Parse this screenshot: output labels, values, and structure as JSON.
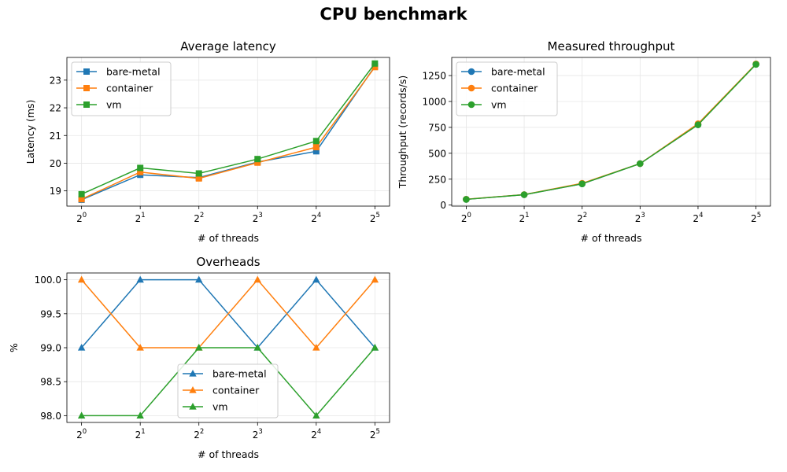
{
  "title": "CPU benchmark",
  "chart_data": [
    {
      "type": "line",
      "title": "Average latency",
      "xlabel": "# of threads",
      "ylabel": "Latency (ms)",
      "x": [
        1,
        2,
        4,
        8,
        16,
        32
      ],
      "x_tick_labels": [
        {
          "base": "2",
          "exp": "0"
        },
        {
          "base": "2",
          "exp": "1"
        },
        {
          "base": "2",
          "exp": "2"
        },
        {
          "base": "2",
          "exp": "3"
        },
        {
          "base": "2",
          "exp": "4"
        },
        {
          "base": "2",
          "exp": "5"
        }
      ],
      "x_scale": "log2",
      "ylim": [
        18.45,
        23.82
      ],
      "y_ticks": [
        19,
        20,
        21,
        22,
        23
      ],
      "marker": "square",
      "grid": true,
      "legend_position": "upper left",
      "series": [
        {
          "name": "bare-metal",
          "color": "#1f77b4",
          "values": [
            18.68,
            19.58,
            19.48,
            20.04,
            20.43,
            23.5
          ]
        },
        {
          "name": "container",
          "color": "#ff7f0e",
          "values": [
            18.7,
            19.68,
            19.45,
            20.02,
            20.58,
            23.47
          ]
        },
        {
          "name": "vm",
          "color": "#2ca02c",
          "values": [
            18.88,
            19.83,
            19.63,
            20.15,
            20.8,
            23.6
          ]
        }
      ]
    },
    {
      "type": "line",
      "title": "Measured throughput",
      "xlabel": "# of threads",
      "ylabel": "Throughput (records/s)",
      "x": [
        1,
        2,
        4,
        8,
        16,
        32
      ],
      "x_tick_labels": [
        {
          "base": "2",
          "exp": "0"
        },
        {
          "base": "2",
          "exp": "1"
        },
        {
          "base": "2",
          "exp": "2"
        },
        {
          "base": "2",
          "exp": "3"
        },
        {
          "base": "2",
          "exp": "4"
        },
        {
          "base": "2",
          "exp": "5"
        }
      ],
      "x_scale": "log2",
      "ylim": [
        -10,
        1425
      ],
      "y_ticks": [
        0,
        250,
        500,
        750,
        1000,
        1250
      ],
      "marker": "circle",
      "grid": true,
      "legend_position": "upper left",
      "series": [
        {
          "name": "bare-metal",
          "color": "#1f77b4",
          "values": [
            55,
            100,
            205,
            400,
            775,
            1360
          ]
        },
        {
          "name": "container",
          "color": "#ff7f0e",
          "values": [
            56,
            101,
            210,
            400,
            785,
            1362
          ]
        },
        {
          "name": "vm",
          "color": "#2ca02c",
          "values": [
            55,
            100,
            205,
            400,
            775,
            1358
          ]
        }
      ]
    },
    {
      "type": "line",
      "title": "Overheads",
      "xlabel": "# of threads",
      "ylabel": "%",
      "x": [
        1,
        2,
        4,
        8,
        16,
        32
      ],
      "x_tick_labels": [
        {
          "base": "2",
          "exp": "0"
        },
        {
          "base": "2",
          "exp": "1"
        },
        {
          "base": "2",
          "exp": "2"
        },
        {
          "base": "2",
          "exp": "3"
        },
        {
          "base": "2",
          "exp": "4"
        },
        {
          "base": "2",
          "exp": "5"
        }
      ],
      "x_scale": "log2",
      "ylim": [
        97.9,
        100.1
      ],
      "y_ticks": [
        98.0,
        98.5,
        99.0,
        99.5,
        100.0
      ],
      "y_tick_labels": [
        "98.0",
        "98.5",
        "99.0",
        "99.5",
        "100.0"
      ],
      "marker": "triangle",
      "grid": true,
      "legend_position": "lower center",
      "series": [
        {
          "name": "bare-metal",
          "color": "#1f77b4",
          "values": [
            99,
            100,
            100,
            99,
            100,
            99
          ]
        },
        {
          "name": "container",
          "color": "#ff7f0e",
          "values": [
            100,
            99,
            99,
            100,
            99,
            100
          ]
        },
        {
          "name": "vm",
          "color": "#2ca02c",
          "values": [
            98,
            98,
            99,
            99,
            98,
            99
          ]
        }
      ]
    }
  ]
}
